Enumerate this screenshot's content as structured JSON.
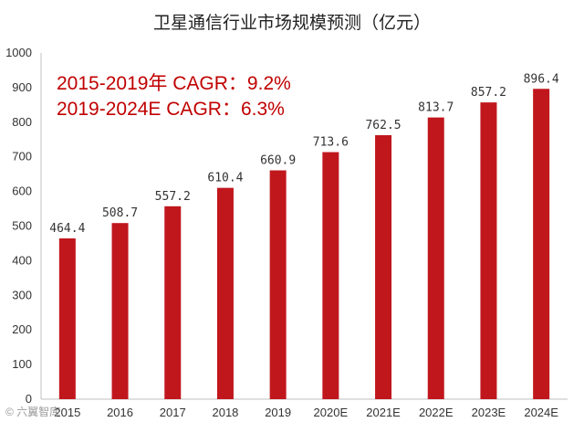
{
  "chart_data": {
    "type": "bar",
    "title": "卫星通信行业市场规模预测（亿元）",
    "categories": [
      "2015",
      "2016",
      "2017",
      "2018",
      "2019",
      "2020E",
      "2021E",
      "2022E",
      "2023E",
      "2024E"
    ],
    "values": [
      464.4,
      508.7,
      557.2,
      610.4,
      660.9,
      713.6,
      762.5,
      813.7,
      857.2,
      896.4
    ],
    "value_labels": [
      "464.4",
      "508.7",
      "557.2",
      "610.4",
      "660.9",
      "713.6",
      "762.5",
      "813.7",
      "857.2",
      "896.4"
    ],
    "ylim": [
      0,
      1000
    ],
    "yticks": [
      "0",
      "100",
      "200",
      "300",
      "400",
      "500",
      "600",
      "700",
      "800",
      "900",
      "1000"
    ],
    "xlabel": "",
    "ylabel": "",
    "grid": false,
    "bar_color": "#c0171d",
    "annotations": [
      "2015-2019年 CAGR：9.2%",
      "2019-2024E CAGR：6.3%"
    ],
    "annotation_color": "#c00000"
  },
  "watermark": "© 六翼智库"
}
